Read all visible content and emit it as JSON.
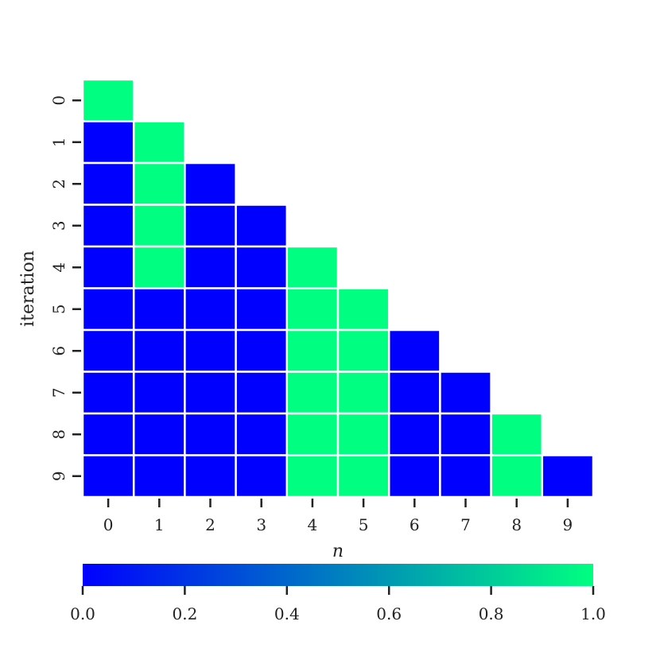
{
  "chart_data": {
    "type": "heatmap",
    "title": "",
    "xlabel": "n",
    "ylabel": "iteration",
    "x_categories": [
      "0",
      "1",
      "2",
      "3",
      "4",
      "5",
      "6",
      "7",
      "8",
      "9"
    ],
    "y_categories": [
      "0",
      "1",
      "2",
      "3",
      "4",
      "5",
      "6",
      "7",
      "8",
      "9"
    ],
    "values": [
      [
        1,
        null,
        null,
        null,
        null,
        null,
        null,
        null,
        null,
        null
      ],
      [
        0,
        1,
        null,
        null,
        null,
        null,
        null,
        null,
        null,
        null
      ],
      [
        0,
        1,
        0,
        null,
        null,
        null,
        null,
        null,
        null,
        null
      ],
      [
        0,
        1,
        0,
        0,
        null,
        null,
        null,
        null,
        null,
        null
      ],
      [
        0,
        1,
        0,
        0,
        1,
        null,
        null,
        null,
        null,
        null
      ],
      [
        0,
        0,
        0,
        0,
        1,
        1,
        null,
        null,
        null,
        null
      ],
      [
        0,
        0,
        0,
        0,
        1,
        1,
        0,
        null,
        null,
        null
      ],
      [
        0,
        0,
        0,
        0,
        1,
        1,
        0,
        0,
        null,
        null
      ],
      [
        0,
        0,
        0,
        0,
        1,
        1,
        0,
        0,
        1,
        null
      ],
      [
        0,
        0,
        0,
        0,
        1,
        1,
        0,
        0,
        1,
        0
      ]
    ],
    "colormap": {
      "low_color": "#0000ff",
      "high_color": "#00ff80",
      "range": [
        0,
        1
      ]
    },
    "colorbar": {
      "orientation": "horizontal",
      "placement": "bottom",
      "ticks": [
        "0.0",
        "0.2",
        "0.4",
        "0.6",
        "0.8",
        "1.0"
      ]
    },
    "grid": false,
    "cell_border_color": "#ffffff"
  }
}
